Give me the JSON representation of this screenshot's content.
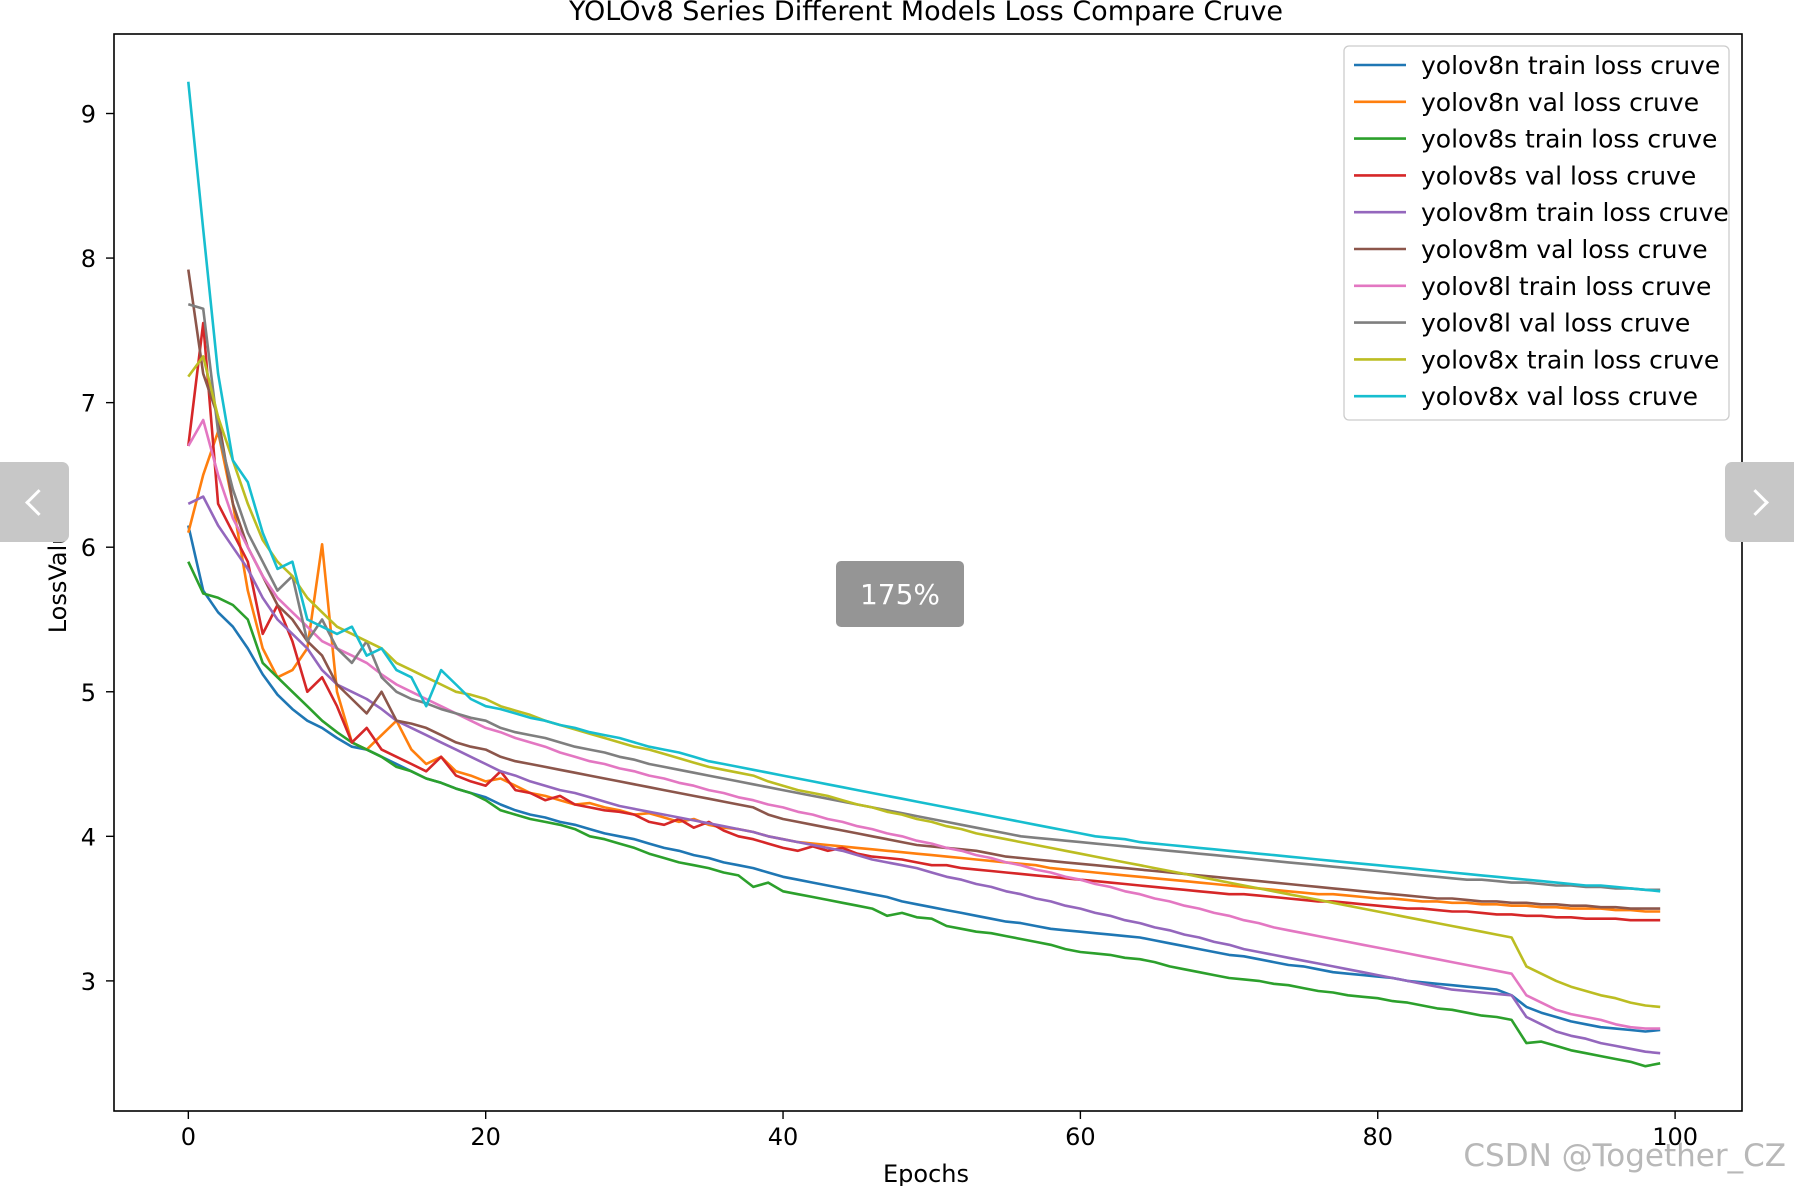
{
  "chart_data": {
    "type": "line",
    "title": "YOLOv8 Series Different Models Loss Compare Cruve",
    "xlabel": "Epochs",
    "ylabel": "LossValue",
    "xlim": [
      -5,
      104.5
    ],
    "ylim": [
      2.1,
      9.55
    ],
    "xticks": [
      0,
      20,
      40,
      60,
      80,
      100
    ],
    "yticks": [
      3,
      4,
      5,
      6,
      7,
      8,
      9
    ],
    "grid": false,
    "legend_position": "upper-right",
    "x_start": 0,
    "x_end": 99,
    "series": [
      {
        "name": "yolov8n train loss cruve",
        "color": "#1f77b4",
        "values": [
          6.15,
          5.7,
          5.55,
          5.45,
          5.3,
          5.12,
          4.98,
          4.88,
          4.8,
          4.75,
          4.68,
          4.62,
          4.6,
          4.55,
          4.5,
          4.45,
          4.4,
          4.37,
          4.33,
          4.3,
          4.27,
          4.22,
          4.18,
          4.15,
          4.13,
          4.1,
          4.08,
          4.05,
          4.02,
          4.0,
          3.98,
          3.95,
          3.92,
          3.9,
          3.87,
          3.85,
          3.82,
          3.8,
          3.78,
          3.75,
          3.72,
          3.7,
          3.68,
          3.66,
          3.64,
          3.62,
          3.6,
          3.58,
          3.55,
          3.53,
          3.51,
          3.49,
          3.47,
          3.45,
          3.43,
          3.41,
          3.4,
          3.38,
          3.36,
          3.35,
          3.34,
          3.33,
          3.32,
          3.31,
          3.3,
          3.28,
          3.26,
          3.24,
          3.22,
          3.2,
          3.18,
          3.17,
          3.15,
          3.13,
          3.11,
          3.1,
          3.08,
          3.06,
          3.05,
          3.04,
          3.03,
          3.02,
          3.0,
          2.99,
          2.98,
          2.97,
          2.96,
          2.95,
          2.94,
          2.9,
          2.82,
          2.78,
          2.75,
          2.72,
          2.7,
          2.68,
          2.67,
          2.66,
          2.65,
          2.66
        ]
      },
      {
        "name": "yolov8n val loss cruve",
        "color": "#ff7f0e",
        "values": [
          6.1,
          6.5,
          6.8,
          6.3,
          5.7,
          5.3,
          5.1,
          5.15,
          5.3,
          6.02,
          5.0,
          4.65,
          4.6,
          4.7,
          4.8,
          4.6,
          4.5,
          4.55,
          4.45,
          4.42,
          4.38,
          4.4,
          4.35,
          4.3,
          4.28,
          4.25,
          4.22,
          4.23,
          4.2,
          4.18,
          4.15,
          4.16,
          4.13,
          4.1,
          4.12,
          4.08,
          4.06,
          4.05,
          4.03,
          4.0,
          3.98,
          3.96,
          3.95,
          3.94,
          3.93,
          3.92,
          3.91,
          3.9,
          3.89,
          3.88,
          3.87,
          3.86,
          3.85,
          3.84,
          3.83,
          3.82,
          3.81,
          3.8,
          3.78,
          3.77,
          3.76,
          3.75,
          3.74,
          3.73,
          3.72,
          3.71,
          3.7,
          3.69,
          3.68,
          3.67,
          3.66,
          3.65,
          3.64,
          3.63,
          3.62,
          3.61,
          3.6,
          3.6,
          3.59,
          3.58,
          3.57,
          3.57,
          3.56,
          3.55,
          3.55,
          3.54,
          3.54,
          3.53,
          3.53,
          3.52,
          3.52,
          3.51,
          3.51,
          3.5,
          3.5,
          3.5,
          3.49,
          3.49,
          3.48,
          3.48
        ]
      },
      {
        "name": "yolov8s train loss cruve",
        "color": "#2ca02c",
        "values": [
          5.9,
          5.68,
          5.65,
          5.6,
          5.5,
          5.2,
          5.1,
          5.0,
          4.9,
          4.8,
          4.72,
          4.65,
          4.6,
          4.55,
          4.48,
          4.45,
          4.4,
          4.37,
          4.33,
          4.3,
          4.25,
          4.18,
          4.15,
          4.12,
          4.1,
          4.08,
          4.05,
          4.0,
          3.98,
          3.95,
          3.92,
          3.88,
          3.85,
          3.82,
          3.8,
          3.78,
          3.75,
          3.73,
          3.65,
          3.68,
          3.62,
          3.6,
          3.58,
          3.56,
          3.54,
          3.52,
          3.5,
          3.45,
          3.47,
          3.44,
          3.43,
          3.38,
          3.36,
          3.34,
          3.33,
          3.31,
          3.29,
          3.27,
          3.25,
          3.22,
          3.2,
          3.19,
          3.18,
          3.16,
          3.15,
          3.13,
          3.1,
          3.08,
          3.06,
          3.04,
          3.02,
          3.01,
          3.0,
          2.98,
          2.97,
          2.95,
          2.93,
          2.92,
          2.9,
          2.89,
          2.88,
          2.86,
          2.85,
          2.83,
          2.81,
          2.8,
          2.78,
          2.76,
          2.75,
          2.73,
          2.57,
          2.58,
          2.55,
          2.52,
          2.5,
          2.48,
          2.46,
          2.44,
          2.41,
          2.43
        ]
      },
      {
        "name": "yolov8s val loss cruve",
        "color": "#d62728",
        "values": [
          6.7,
          7.55,
          6.3,
          6.1,
          5.9,
          5.4,
          5.6,
          5.35,
          5.0,
          5.1,
          4.9,
          4.65,
          4.75,
          4.6,
          4.55,
          4.5,
          4.45,
          4.55,
          4.42,
          4.38,
          4.35,
          4.45,
          4.32,
          4.3,
          4.25,
          4.28,
          4.22,
          4.2,
          4.18,
          4.17,
          4.15,
          4.1,
          4.08,
          4.12,
          4.06,
          4.1,
          4.04,
          4.0,
          3.98,
          3.95,
          3.92,
          3.9,
          3.93,
          3.9,
          3.92,
          3.88,
          3.86,
          3.85,
          3.84,
          3.82,
          3.8,
          3.8,
          3.78,
          3.77,
          3.76,
          3.75,
          3.74,
          3.73,
          3.72,
          3.71,
          3.7,
          3.69,
          3.68,
          3.67,
          3.66,
          3.65,
          3.64,
          3.63,
          3.62,
          3.61,
          3.6,
          3.6,
          3.59,
          3.58,
          3.57,
          3.56,
          3.55,
          3.55,
          3.54,
          3.53,
          3.52,
          3.51,
          3.5,
          3.5,
          3.49,
          3.48,
          3.48,
          3.47,
          3.46,
          3.46,
          3.45,
          3.45,
          3.44,
          3.44,
          3.43,
          3.43,
          3.43,
          3.42,
          3.42,
          3.42
        ]
      },
      {
        "name": "yolov8m train loss cruve",
        "color": "#9467bd",
        "values": [
          6.3,
          6.35,
          6.15,
          6.0,
          5.85,
          5.65,
          5.5,
          5.4,
          5.3,
          5.15,
          5.05,
          5.0,
          4.95,
          4.88,
          4.8,
          4.75,
          4.7,
          4.65,
          4.6,
          4.55,
          4.5,
          4.45,
          4.42,
          4.38,
          4.35,
          4.32,
          4.3,
          4.27,
          4.24,
          4.21,
          4.19,
          4.17,
          4.15,
          4.13,
          4.11,
          4.09,
          4.07,
          4.05,
          4.03,
          4.0,
          3.98,
          3.96,
          3.94,
          3.92,
          3.9,
          3.87,
          3.84,
          3.82,
          3.8,
          3.78,
          3.75,
          3.72,
          3.7,
          3.67,
          3.65,
          3.62,
          3.6,
          3.57,
          3.55,
          3.52,
          3.5,
          3.47,
          3.45,
          3.42,
          3.4,
          3.37,
          3.35,
          3.32,
          3.3,
          3.27,
          3.25,
          3.22,
          3.2,
          3.18,
          3.16,
          3.14,
          3.12,
          3.1,
          3.08,
          3.06,
          3.04,
          3.02,
          3.0,
          2.98,
          2.96,
          2.94,
          2.93,
          2.92,
          2.91,
          2.9,
          2.75,
          2.7,
          2.65,
          2.62,
          2.6,
          2.57,
          2.55,
          2.53,
          2.51,
          2.5
        ]
      },
      {
        "name": "yolov8m val loss cruve",
        "color": "#8c564b",
        "values": [
          7.92,
          7.2,
          6.9,
          6.3,
          6.0,
          5.8,
          5.6,
          5.5,
          5.35,
          5.25,
          5.05,
          4.95,
          4.85,
          5.0,
          4.8,
          4.78,
          4.75,
          4.7,
          4.65,
          4.62,
          4.6,
          4.55,
          4.52,
          4.5,
          4.48,
          4.46,
          4.44,
          4.42,
          4.4,
          4.38,
          4.36,
          4.34,
          4.32,
          4.3,
          4.28,
          4.26,
          4.24,
          4.22,
          4.2,
          4.15,
          4.12,
          4.1,
          4.08,
          4.06,
          4.04,
          4.02,
          4.0,
          3.98,
          3.96,
          3.94,
          3.93,
          3.92,
          3.91,
          3.9,
          3.88,
          3.86,
          3.85,
          3.84,
          3.83,
          3.82,
          3.81,
          3.8,
          3.79,
          3.78,
          3.77,
          3.76,
          3.75,
          3.74,
          3.73,
          3.72,
          3.71,
          3.7,
          3.69,
          3.68,
          3.67,
          3.66,
          3.65,
          3.64,
          3.63,
          3.62,
          3.61,
          3.6,
          3.59,
          3.58,
          3.57,
          3.57,
          3.56,
          3.55,
          3.55,
          3.54,
          3.54,
          3.53,
          3.53,
          3.52,
          3.52,
          3.51,
          3.51,
          3.5,
          3.5,
          3.5
        ]
      },
      {
        "name": "yolov8l train loss cruve",
        "color": "#e377c2",
        "values": [
          6.7,
          6.88,
          6.5,
          6.2,
          6.0,
          5.8,
          5.65,
          5.55,
          5.45,
          5.35,
          5.3,
          5.25,
          5.2,
          5.12,
          5.05,
          5.0,
          4.95,
          4.9,
          4.85,
          4.8,
          4.75,
          4.72,
          4.68,
          4.65,
          4.62,
          4.58,
          4.55,
          4.52,
          4.5,
          4.47,
          4.45,
          4.42,
          4.4,
          4.37,
          4.35,
          4.32,
          4.3,
          4.27,
          4.25,
          4.22,
          4.2,
          4.17,
          4.15,
          4.12,
          4.1,
          4.07,
          4.05,
          4.02,
          4.0,
          3.97,
          3.95,
          3.92,
          3.9,
          3.87,
          3.85,
          3.82,
          3.8,
          3.77,
          3.75,
          3.72,
          3.7,
          3.67,
          3.65,
          3.62,
          3.6,
          3.57,
          3.55,
          3.52,
          3.5,
          3.47,
          3.45,
          3.42,
          3.4,
          3.37,
          3.35,
          3.33,
          3.31,
          3.29,
          3.27,
          3.25,
          3.23,
          3.21,
          3.19,
          3.17,
          3.15,
          3.13,
          3.11,
          3.09,
          3.07,
          3.05,
          2.9,
          2.85,
          2.8,
          2.77,
          2.75,
          2.73,
          2.7,
          2.68,
          2.67,
          2.67
        ]
      },
      {
        "name": "yolov8l val loss cruve",
        "color": "#7f7f7f",
        "values": [
          7.68,
          7.65,
          6.8,
          6.4,
          6.1,
          5.9,
          5.7,
          5.8,
          5.35,
          5.5,
          5.3,
          5.2,
          5.35,
          5.1,
          5.0,
          4.95,
          4.92,
          4.88,
          4.85,
          4.82,
          4.8,
          4.75,
          4.72,
          4.7,
          4.68,
          4.65,
          4.62,
          4.6,
          4.58,
          4.55,
          4.53,
          4.5,
          4.48,
          4.46,
          4.44,
          4.42,
          4.4,
          4.38,
          4.36,
          4.34,
          4.32,
          4.3,
          4.28,
          4.26,
          4.24,
          4.22,
          4.2,
          4.18,
          4.16,
          4.14,
          4.12,
          4.1,
          4.08,
          4.06,
          4.04,
          4.02,
          4.0,
          3.99,
          3.98,
          3.97,
          3.96,
          3.95,
          3.94,
          3.93,
          3.92,
          3.91,
          3.9,
          3.89,
          3.88,
          3.87,
          3.86,
          3.85,
          3.84,
          3.83,
          3.82,
          3.81,
          3.8,
          3.79,
          3.78,
          3.77,
          3.76,
          3.75,
          3.74,
          3.73,
          3.72,
          3.71,
          3.7,
          3.7,
          3.69,
          3.68,
          3.68,
          3.67,
          3.66,
          3.66,
          3.65,
          3.65,
          3.64,
          3.64,
          3.63,
          3.63
        ]
      },
      {
        "name": "yolov8x train loss cruve",
        "color": "#bcbd22",
        "values": [
          7.18,
          7.32,
          6.9,
          6.6,
          6.3,
          6.05,
          5.9,
          5.8,
          5.65,
          5.55,
          5.45,
          5.4,
          5.35,
          5.3,
          5.2,
          5.15,
          5.1,
          5.05,
          5.0,
          4.98,
          4.95,
          4.9,
          4.87,
          4.84,
          4.8,
          4.77,
          4.74,
          4.71,
          4.68,
          4.65,
          4.62,
          4.6,
          4.57,
          4.54,
          4.51,
          4.48,
          4.46,
          4.44,
          4.42,
          4.38,
          4.35,
          4.32,
          4.3,
          4.28,
          4.25,
          4.22,
          4.2,
          4.17,
          4.15,
          4.12,
          4.1,
          4.07,
          4.05,
          4.02,
          4.0,
          3.98,
          3.96,
          3.94,
          3.92,
          3.9,
          3.88,
          3.86,
          3.84,
          3.82,
          3.8,
          3.78,
          3.76,
          3.74,
          3.72,
          3.7,
          3.68,
          3.66,
          3.64,
          3.62,
          3.6,
          3.58,
          3.56,
          3.54,
          3.52,
          3.5,
          3.48,
          3.46,
          3.44,
          3.42,
          3.4,
          3.38,
          3.36,
          3.34,
          3.32,
          3.3,
          3.1,
          3.05,
          3.0,
          2.96,
          2.93,
          2.9,
          2.88,
          2.85,
          2.83,
          2.82
        ]
      },
      {
        "name": "yolov8x val loss cruve",
        "color": "#17becf",
        "values": [
          9.22,
          8.2,
          7.2,
          6.6,
          6.45,
          6.1,
          5.85,
          5.9,
          5.5,
          5.45,
          5.4,
          5.45,
          5.25,
          5.3,
          5.15,
          5.1,
          4.9,
          5.15,
          5.05,
          4.95,
          4.9,
          4.88,
          4.85,
          4.82,
          4.8,
          4.77,
          4.75,
          4.72,
          4.7,
          4.68,
          4.65,
          4.62,
          4.6,
          4.58,
          4.55,
          4.52,
          4.5,
          4.48,
          4.46,
          4.44,
          4.42,
          4.4,
          4.38,
          4.36,
          4.34,
          4.32,
          4.3,
          4.28,
          4.26,
          4.24,
          4.22,
          4.2,
          4.18,
          4.16,
          4.14,
          4.12,
          4.1,
          4.08,
          4.06,
          4.04,
          4.02,
          4.0,
          3.99,
          3.98,
          3.96,
          3.95,
          3.94,
          3.93,
          3.92,
          3.91,
          3.9,
          3.89,
          3.88,
          3.87,
          3.86,
          3.85,
          3.84,
          3.83,
          3.82,
          3.81,
          3.8,
          3.79,
          3.78,
          3.77,
          3.76,
          3.75,
          3.74,
          3.73,
          3.72,
          3.71,
          3.7,
          3.69,
          3.68,
          3.67,
          3.66,
          3.66,
          3.65,
          3.64,
          3.63,
          3.62
        ]
      }
    ]
  },
  "viewer": {
    "zoom_label": "175%",
    "prev_icon": "chevron-left-icon",
    "next_icon": "chevron-right-icon"
  },
  "watermark": "CSDN @Together_CZ"
}
